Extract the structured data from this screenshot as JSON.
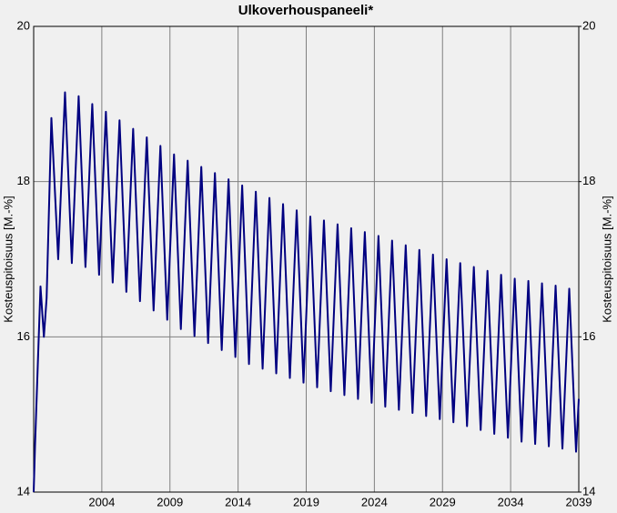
{
  "chart_data": {
    "type": "line",
    "title": "Ulkoverhouspaneeli*",
    "y_label": "Kosteuspitoisuus [M.-%]",
    "y2_label": "Kosteuspitoisuus [M.-%]",
    "color": "#000080",
    "grid": true,
    "xlim": [
      1999,
      2039
    ],
    "xticks": [
      2004,
      2009,
      2014,
      2019,
      2024,
      2029,
      2034,
      2039
    ],
    "ylim": [
      14,
      20
    ],
    "yticks": [
      14,
      16,
      18,
      20
    ],
    "y2lim": [
      14,
      20
    ],
    "y2ticks": [
      14,
      16,
      18,
      20
    ],
    "x": [
      1999,
      1999.1,
      1999.5,
      1999.75,
      1999.95,
      2000.3,
      2000.8,
      2001.3,
      2001.8,
      2002.3,
      2002.8,
      2003.3,
      2003.8,
      2004.3,
      2004.8,
      2005.3,
      2005.8,
      2006.3,
      2006.8,
      2007.3,
      2007.8,
      2008.3,
      2008.8,
      2009.3,
      2009.8,
      2010.3,
      2010.8,
      2011.3,
      2011.8,
      2012.3,
      2012.8,
      2013.3,
      2013.8,
      2014.3,
      2014.8,
      2015.3,
      2015.8,
      2016.3,
      2016.8,
      2017.3,
      2017.8,
      2018.3,
      2018.8,
      2019.3,
      2019.8,
      2020.3,
      2020.8,
      2021.3,
      2021.8,
      2022.3,
      2022.8,
      2023.3,
      2023.8,
      2024.3,
      2024.8,
      2025.3,
      2025.8,
      2026.3,
      2026.8,
      2027.3,
      2027.8,
      2028.3,
      2028.8,
      2029.3,
      2029.8,
      2030.3,
      2030.8,
      2031.3,
      2031.8,
      2032.3,
      2032.8,
      2033.3,
      2033.8,
      2034.3,
      2034.8,
      2035.3,
      2035.8,
      2036.3,
      2036.8,
      2037.3,
      2037.8,
      2038.3,
      2038.8,
      2039
    ],
    "values": [
      14,
      14.6,
      16.65,
      16.0,
      16.5,
      18.82,
      17.0,
      19.15,
      16.95,
      19.1,
      16.9,
      19.0,
      16.8,
      18.9,
      16.7,
      18.79,
      16.58,
      18.68,
      16.46,
      18.57,
      16.34,
      18.46,
      16.22,
      18.35,
      16.1,
      18.27,
      16.01,
      18.19,
      15.92,
      18.11,
      15.83,
      18.03,
      15.74,
      17.95,
      15.65,
      17.87,
      15.59,
      17.79,
      15.53,
      17.71,
      15.47,
      17.63,
      15.41,
      17.55,
      15.35,
      17.5,
      15.3,
      17.45,
      15.25,
      17.4,
      15.2,
      17.35,
      15.15,
      17.3,
      15.1,
      17.24,
      15.06,
      17.18,
      15.02,
      17.12,
      14.98,
      17.06,
      14.94,
      17.0,
      14.9,
      16.95,
      14.85,
      16.9,
      14.8,
      16.85,
      14.75,
      16.8,
      14.7,
      16.75,
      14.65,
      16.72,
      14.62,
      16.69,
      14.59,
      16.66,
      14.56,
      16.62,
      14.52,
      15.2
    ]
  }
}
